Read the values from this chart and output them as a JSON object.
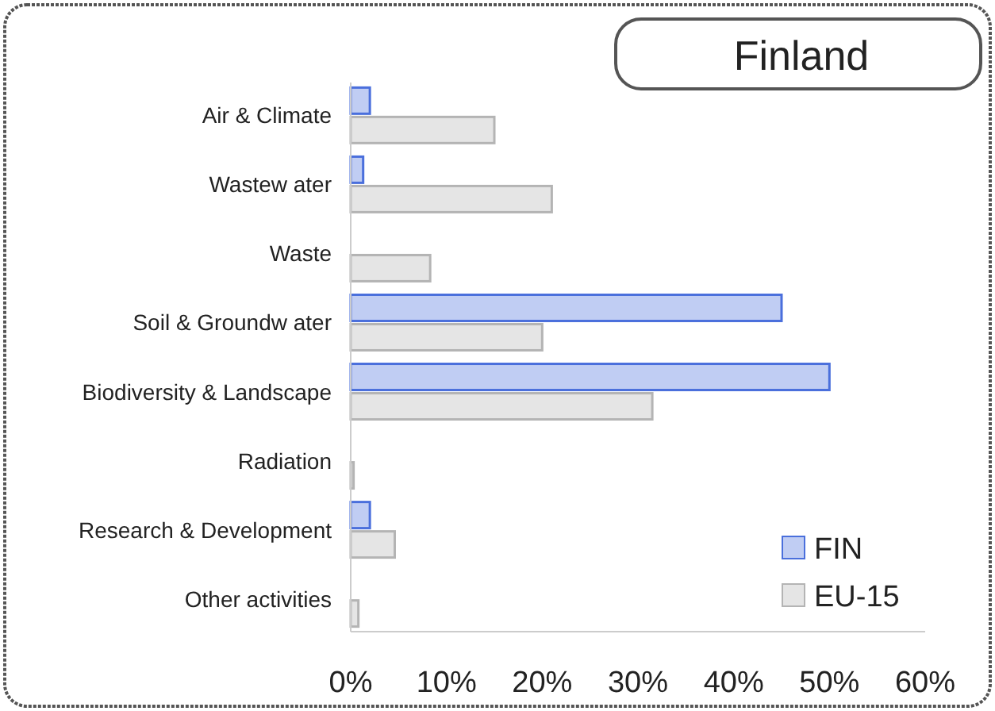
{
  "chart_data": {
    "type": "bar",
    "orientation": "horizontal",
    "title": "Finland",
    "categories": [
      "Air & Climate",
      "Wastew ater",
      "Waste",
      "Soil & Groundw ater",
      "Biodiversity & Landscape",
      "Radiation",
      "Research & Development",
      "Other activities"
    ],
    "series": [
      {
        "name": "FIN",
        "color": "#4a6fdc",
        "values": [
          2,
          1.3,
          0,
          45,
          50,
          0,
          2,
          0
        ]
      },
      {
        "name": "EU-15",
        "color": "#b4b4b4",
        "values": [
          15,
          21,
          8.3,
          20,
          31.5,
          0.3,
          4.6,
          0.8
        ]
      }
    ],
    "xlim": [
      0,
      60
    ],
    "xticks": [
      {
        "value": 0,
        "label": "0%"
      },
      {
        "value": 10,
        "label": "10%"
      },
      {
        "value": 20,
        "label": "20%"
      },
      {
        "value": 30,
        "label": "30%"
      },
      {
        "value": 40,
        "label": "40%"
      },
      {
        "value": 50,
        "label": "50%"
      },
      {
        "value": 60,
        "label": "60%"
      }
    ],
    "legend": "bottom right"
  }
}
